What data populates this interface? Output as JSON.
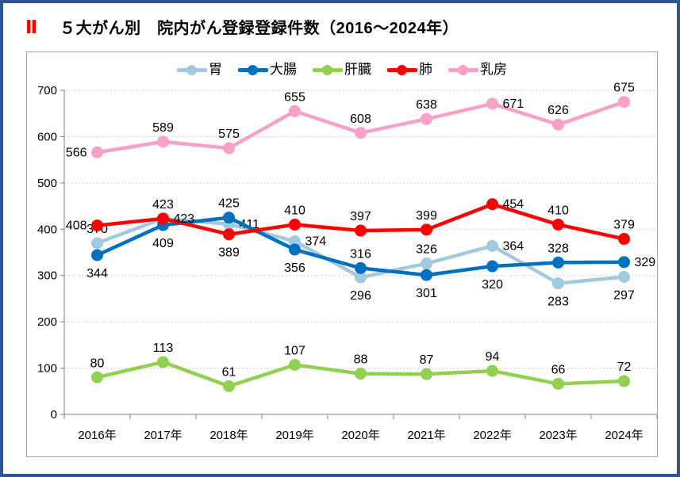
{
  "header": {
    "section_number": "Ⅱ",
    "title": "５大がん別　院内がん登録登録件数（2016～2024年）"
  },
  "chart_data": {
    "type": "line",
    "title": "５大がん別　院内がん登録登録件数（2016～2024年）",
    "xlabel": "",
    "ylabel": "",
    "categories": [
      "2016年",
      "2017年",
      "2018年",
      "2019年",
      "2020年",
      "2021年",
      "2022年",
      "2023年",
      "2024年"
    ],
    "ylim": [
      0,
      700
    ],
    "y_ticks": [
      0,
      100,
      200,
      300,
      400,
      500,
      600,
      700
    ],
    "grid": "horizontal-dotted",
    "legend_position": "top",
    "series": [
      {
        "key": "stomach",
        "name": "胃",
        "color": "#A3C9DE",
        "values": [
          370,
          423,
          411,
          374,
          296,
          326,
          364,
          283,
          297
        ],
        "label_positions": [
          "above",
          "above",
          "right",
          "right",
          "below",
          "above",
          "right",
          "below",
          "below"
        ]
      },
      {
        "key": "colorectal",
        "name": "大腸",
        "color": "#0070C0",
        "values": [
          344,
          409,
          425,
          356,
          316,
          301,
          320,
          328,
          329
        ],
        "label_positions": [
          "below",
          "below",
          "above",
          "below",
          "above",
          "below",
          "below",
          "above",
          "right"
        ]
      },
      {
        "key": "liver",
        "name": "肝臓",
        "color": "#92D050",
        "values": [
          80,
          113,
          61,
          107,
          88,
          87,
          94,
          66,
          72
        ],
        "label_positions": [
          "above",
          "above",
          "above",
          "above",
          "above",
          "above",
          "above",
          "above",
          "above"
        ]
      },
      {
        "key": "lung",
        "name": "肺",
        "color": "#FF0000",
        "values": [
          408,
          423,
          389,
          410,
          397,
          399,
          454,
          410,
          379
        ],
        "label_positions": [
          "left",
          "right",
          "below",
          "above",
          "above",
          "above",
          "right",
          "above",
          "above"
        ]
      },
      {
        "key": "breast",
        "name": "乳房",
        "color": "#F9A0C8",
        "values": [
          566,
          589,
          575,
          655,
          608,
          638,
          671,
          626,
          675
        ],
        "label_positions": [
          "left",
          "above",
          "above",
          "above",
          "above",
          "above",
          "right",
          "above",
          "above"
        ]
      }
    ],
    "style": {
      "axis_color": "#808080",
      "gridline_color": "#BFBFBF",
      "label_color": "#000000",
      "tick_label_color": "#000000"
    }
  }
}
